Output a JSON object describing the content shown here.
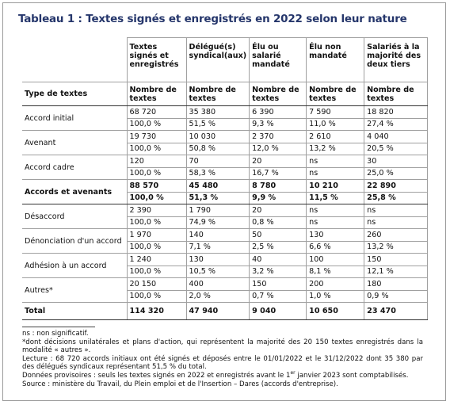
{
  "title": "Tableau 1 : Textes signés et enregistrés en 2022 selon leur nature",
  "table": {
    "columns": [
      "Textes signés et enregistrés",
      "Délégué(s) syndical(aux)",
      "Élu ou salarié mandaté",
      "Élu non mandaté",
      "Salariés à la majorité des deux tiers"
    ],
    "subheader": {
      "label": "Type de textes",
      "units": [
        "Nombre de textes",
        "Nombre de textes",
        "Nombre de textes",
        "Nombre de textes",
        "Nombre de textes"
      ]
    },
    "groups": [
      {
        "label": "Accord initial",
        "counts": [
          "68 720",
          "35 380",
          "6 390",
          "7 590",
          "18 820"
        ],
        "shares": [
          "100,0 %",
          "51,5 %",
          "9,3 %",
          "11,0 %",
          "27,4 %"
        ]
      },
      {
        "label": "Avenant",
        "counts": [
          "19 730",
          "10 030",
          "2 370",
          "2 610",
          "4 040"
        ],
        "shares": [
          "100,0 %",
          "50,8 %",
          "12,0 %",
          "13,2 %",
          "20,5 %"
        ]
      },
      {
        "label": "Accord cadre",
        "counts": [
          "120",
          "70",
          "20",
          "ns",
          "30"
        ],
        "shares": [
          "100,0 %",
          "58,3 %",
          "16,7 %",
          "ns",
          "25,0 %"
        ]
      },
      {
        "label": "Accords et avenants",
        "bold": true,
        "counts": [
          "88 570",
          "45 480",
          "8 780",
          "10 210",
          "22 890"
        ],
        "shares": [
          "100,0  %",
          "51,3 %",
          "9,9 %",
          "11,5 %",
          "25,8 %"
        ]
      },
      {
        "label": "Désaccord",
        "counts": [
          "2 390",
          "1 790",
          "20",
          "ns",
          "ns"
        ],
        "shares": [
          "100,0 %",
          "74,9 %",
          "0,8 %",
          "ns",
          "ns"
        ]
      },
      {
        "label": "Dénonciation d'un accord",
        "counts": [
          "1 970",
          "140",
          "50",
          "130",
          "260"
        ],
        "shares": [
          "100,0 %",
          "7,1 %",
          "2,5 %",
          "6,6 %",
          "13,2 %"
        ]
      },
      {
        "label": "Adhésion à un accord",
        "counts": [
          "1 240",
          "130",
          "40",
          "100",
          "150"
        ],
        "shares": [
          "100,0 %",
          "10,5 %",
          "3,2 %",
          "8,1 %",
          "12,1 %"
        ]
      },
      {
        "label": "Autres*",
        "counts": [
          "20 150",
          "400",
          "150",
          "200",
          "180"
        ],
        "shares": [
          "100,0 %",
          "2,0 %",
          "0,7 %",
          "1,0 %",
          "0,9 %"
        ]
      }
    ],
    "total": {
      "label": "Total",
      "counts": [
        "114 320",
        "47 940",
        "9 040",
        "10 650",
        "23 470"
      ]
    }
  },
  "notes": {
    "ns": "ns : non significatif.",
    "autres": "*dont décisions unilatérales et plans d'action, qui représentent la majorité des 20 150 textes enregistrés dans la modalité « autres ».",
    "lecture": "Lecture : 68 720 accords initiaux ont été signés et déposés entre le 01/01/2022 et le 31/12/2022 dont 35 380 par des délégués syndicaux représentant 51,5 % du total.",
    "provisoires": [
      "Données provisoires : seuls les textes signés en 2022 et enregistrés avant le 1",
      "er",
      " janvier 2023 sont comptabilisés."
    ],
    "source": "Source : ministère du Travail, du Plein emploi et de l'Insertion – Dares (accords d'entreprise)."
  }
}
